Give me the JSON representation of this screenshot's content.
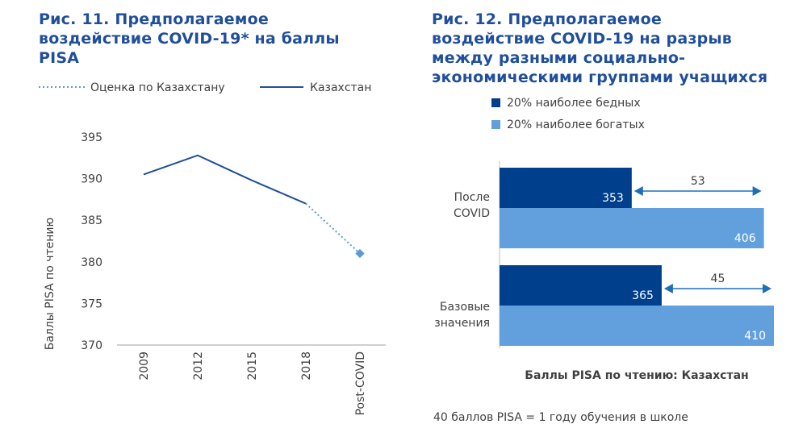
{
  "fig11": {
    "title": "Рис. 11. Предполагаемое воздействие COVID-19* на баллы PISA"
  },
  "fig12": {
    "title": "Рис. 12. Предполагаемое воздействие COVID-19 на разрыв между разными социально-экономическими группами учащихся"
  },
  "chart_data": [
    {
      "type": "line",
      "title": "Рис. 11. Предполагаемое воздействие COVID-19* на баллы PISA",
      "ylabel": "Баллы PISA по чтению",
      "xlabel": "",
      "categories": [
        "2009",
        "2012",
        "2015",
        "2018",
        "Post-COVID"
      ],
      "ylim": [
        370,
        395
      ],
      "yticks": [
        "395",
        "390",
        "385",
        "380",
        "375",
        "370"
      ],
      "series": [
        {
          "name": "Казахстан",
          "style": "solid",
          "color": "#1f4e9c",
          "values": [
            390.5,
            392.8,
            389.8,
            387,
            null
          ]
        },
        {
          "name": "Оценка по Казахстану",
          "style": "dotted",
          "color": "#5b9bd5",
          "values": [
            null,
            null,
            null,
            387,
            381
          ]
        }
      ]
    },
    {
      "type": "bar",
      "orientation": "horizontal",
      "title": "Рис. 12. Предполагаемое воздействие COVID-19 на разрыв между разными социально-экономическими группами учащихся",
      "xlabel": "Баллы PISA по чтению: Казахстан",
      "categories": [
        "После COVID",
        "Базовые значения"
      ],
      "series": [
        {
          "name": "20% наиболее бедных",
          "color": "#003f8c",
          "values": [
            353,
            365
          ]
        },
        {
          "name": "20% наиболее богатых",
          "color": "#62a0dd",
          "values": [
            406,
            410
          ]
        }
      ],
      "gap_labels": [
        "53",
        "45"
      ],
      "note": "40 баллов PISA = 1 году обучения в школе"
    }
  ]
}
